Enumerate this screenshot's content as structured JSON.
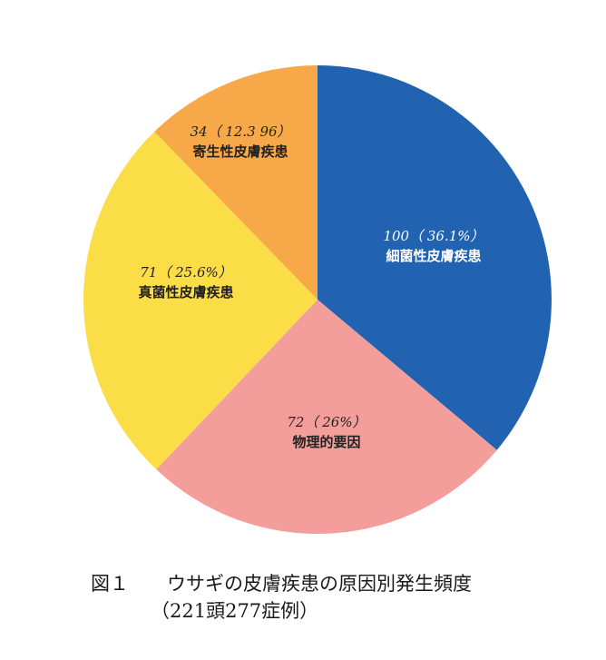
{
  "chart_data": {
    "type": "pie",
    "start_angle_deg": 0,
    "direction": "clockwise",
    "slices": [
      {
        "count_label": "100（ 36.1%）",
        "name": "細菌性皮膚疾患",
        "value": 100,
        "percent": 36.1,
        "color": "#2163b1",
        "text_color": "#ffffff"
      },
      {
        "count_label": "72（ 26%）",
        "name": "物理的要因",
        "value": 72,
        "percent": 26,
        "color": "#f39e9a",
        "text_color": "#222222"
      },
      {
        "count_label": "71（ 25.6%）",
        "name": "真菌性皮膚疾患",
        "value": 71,
        "percent": 25.6,
        "color": "#fbdd47",
        "text_color": "#222222"
      },
      {
        "count_label": "34（ 12.3 96）",
        "name": "寄生性皮膚疾患",
        "value": 34,
        "percent": 12.3,
        "color": "#f7a94a",
        "text_color": "#222222"
      }
    ]
  },
  "caption": {
    "figure_label": "図１",
    "title": "ウサギの皮膚疾患の原因別発生頻度",
    "subtitle": "（221頭277症例）"
  }
}
